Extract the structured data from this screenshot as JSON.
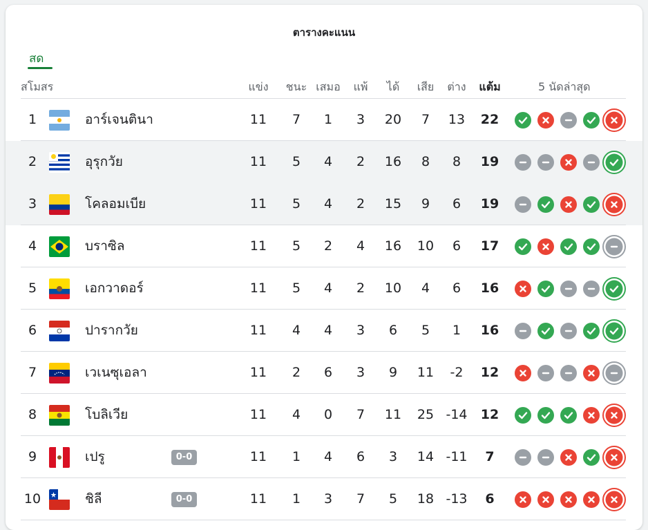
{
  "title": "ตารางคะแนน",
  "live_tab": "สด",
  "columns": {
    "club": "สโมสร",
    "played": "แข่ง",
    "won": "ชนะ",
    "drawn": "เสมอ",
    "lost": "แพ้",
    "gf": "ได้",
    "ga": "เสีย",
    "gd": "ต่าง",
    "pts": "แต้ม",
    "form": "5 นัดล่าสุด"
  },
  "colors": {
    "win": "#34a853",
    "loss": "#ea4335",
    "draw": "#9aa0a6",
    "live_green": "#188038"
  },
  "rows": [
    {
      "rank": "1",
      "team": "อาร์เจนตินา",
      "flag": "argentina-flag",
      "badge": "",
      "played": "11",
      "won": "7",
      "drawn": "1",
      "lost": "3",
      "gf": "20",
      "ga": "7",
      "gd": "13",
      "pts": "22",
      "form": [
        "W",
        "L",
        "D",
        "W",
        "L"
      ],
      "highlight": false
    },
    {
      "rank": "2",
      "team": "อุรุกวัย",
      "flag": "uruguay-flag",
      "badge": "",
      "played": "11",
      "won": "5",
      "drawn": "4",
      "lost": "2",
      "gf": "16",
      "ga": "8",
      "gd": "8",
      "pts": "19",
      "form": [
        "D",
        "D",
        "L",
        "D",
        "W"
      ],
      "highlight": true
    },
    {
      "rank": "3",
      "team": "โคลอมเบีย",
      "flag": "colombia-flag",
      "badge": "",
      "played": "11",
      "won": "5",
      "drawn": "4",
      "lost": "2",
      "gf": "15",
      "ga": "9",
      "gd": "6",
      "pts": "19",
      "form": [
        "D",
        "W",
        "L",
        "W",
        "L"
      ],
      "highlight": true
    },
    {
      "rank": "4",
      "team": "บราซิล",
      "flag": "brazil-flag",
      "badge": "",
      "played": "11",
      "won": "5",
      "drawn": "2",
      "lost": "4",
      "gf": "16",
      "ga": "10",
      "gd": "6",
      "pts": "17",
      "form": [
        "W",
        "L",
        "W",
        "W",
        "D"
      ],
      "highlight": false
    },
    {
      "rank": "5",
      "team": "เอกวาดอร์",
      "flag": "ecuador-flag",
      "badge": "",
      "played": "11",
      "won": "5",
      "drawn": "4",
      "lost": "2",
      "gf": "10",
      "ga": "4",
      "gd": "6",
      "pts": "16",
      "form": [
        "L",
        "W",
        "D",
        "D",
        "W"
      ],
      "highlight": false
    },
    {
      "rank": "6",
      "team": "ปารากวัย",
      "flag": "paraguay-flag",
      "badge": "",
      "played": "11",
      "won": "4",
      "drawn": "4",
      "lost": "3",
      "gf": "6",
      "ga": "5",
      "gd": "1",
      "pts": "16",
      "form": [
        "D",
        "W",
        "D",
        "W",
        "W"
      ],
      "highlight": false
    },
    {
      "rank": "7",
      "team": "เวเนซุเอลา",
      "flag": "venezuela-flag",
      "badge": "",
      "played": "11",
      "won": "2",
      "drawn": "6",
      "lost": "3",
      "gf": "9",
      "ga": "11",
      "gd": "-2",
      "pts": "12",
      "form": [
        "L",
        "D",
        "D",
        "L",
        "D"
      ],
      "highlight": false
    },
    {
      "rank": "8",
      "team": "โบลิเวีย",
      "flag": "bolivia-flag",
      "badge": "",
      "played": "11",
      "won": "4",
      "drawn": "0",
      "lost": "7",
      "gf": "11",
      "ga": "25",
      "gd": "-14",
      "pts": "12",
      "form": [
        "W",
        "W",
        "W",
        "L",
        "L"
      ],
      "highlight": false
    },
    {
      "rank": "9",
      "team": "เปรู",
      "flag": "peru-flag",
      "badge": "0-0",
      "played": "11",
      "won": "1",
      "drawn": "4",
      "lost": "6",
      "gf": "3",
      "ga": "14",
      "gd": "-11",
      "pts": "7",
      "form": [
        "D",
        "D",
        "L",
        "W",
        "L"
      ],
      "highlight": false
    },
    {
      "rank": "10",
      "team": "ชิลี",
      "flag": "chile-flag",
      "badge": "0-0",
      "played": "11",
      "won": "1",
      "drawn": "3",
      "lost": "7",
      "gf": "5",
      "ga": "18",
      "gd": "-13",
      "pts": "6",
      "form": [
        "L",
        "L",
        "L",
        "L",
        "L"
      ],
      "highlight": false
    }
  ]
}
